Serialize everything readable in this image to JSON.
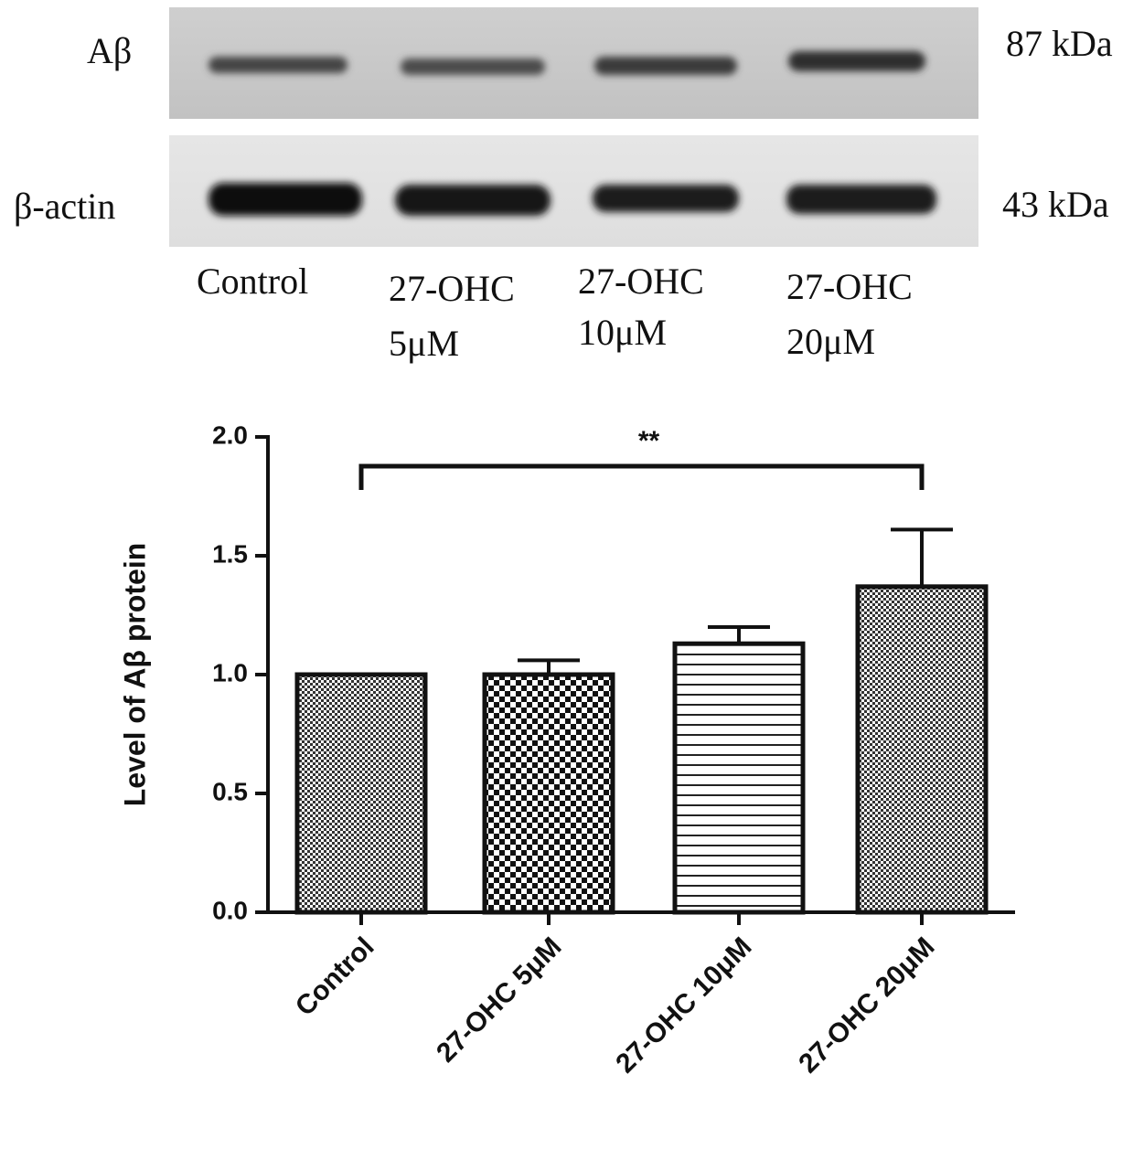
{
  "blot": {
    "rows": [
      {
        "label": "Aβ",
        "size": "87 kDa"
      },
      {
        "label": "β-actin",
        "size": "43 kDa"
      }
    ],
    "lanes": [
      [
        "Control"
      ],
      [
        "27-OHC",
        "5μM"
      ],
      [
        "27-OHC",
        "10μM"
      ],
      [
        "27-OHC",
        "20μM"
      ]
    ]
  },
  "chart_data": {
    "type": "bar",
    "y_label": "Level of Aβ protein",
    "categories": [
      "Control",
      "27-OHC 5μM",
      "27-OHC 10μM",
      "27-OHC 20μM"
    ],
    "values": [
      1.0,
      1.0,
      1.13,
      1.37
    ],
    "errors": [
      0,
      0.06,
      0.07,
      0.24
    ],
    "patterns": [
      "fine-check",
      "check",
      "hlines",
      "fine-check"
    ],
    "ylim": [
      0,
      2.0
    ],
    "yticks": [
      {
        "value": 0,
        "label": "0.0"
      },
      0.5,
      {
        "value": 1,
        "label": "1.0"
      },
      1.5,
      {
        "value": 2,
        "label": "2.0"
      }
    ],
    "annotation": "**"
  }
}
